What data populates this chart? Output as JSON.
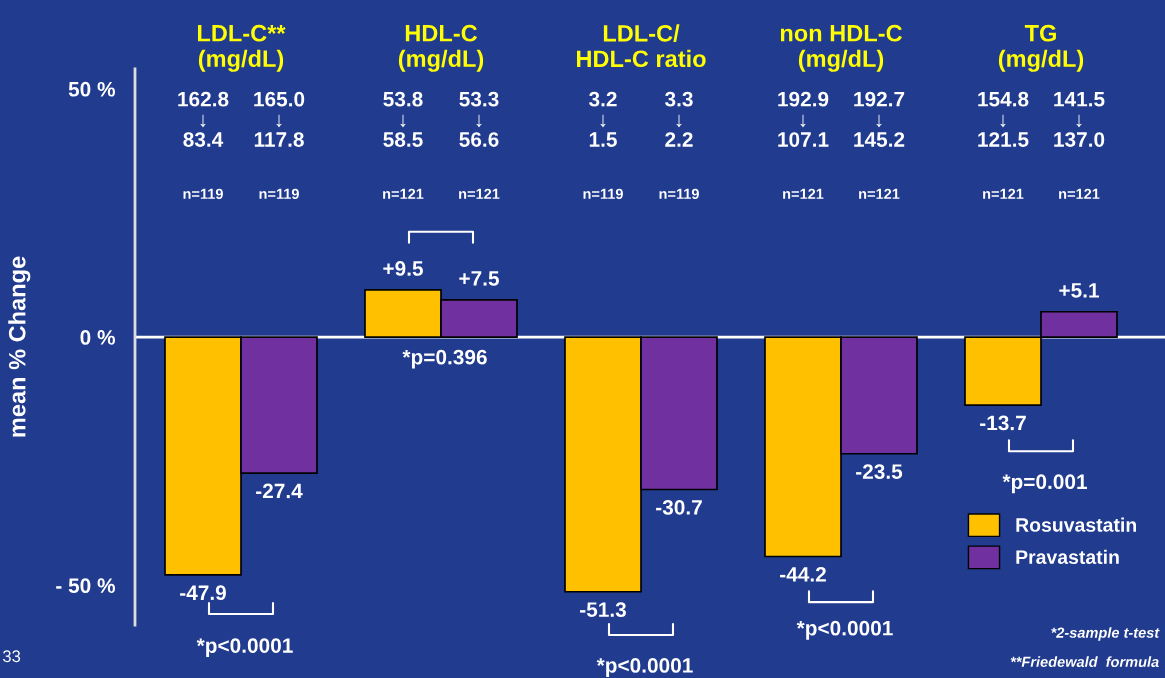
{
  "chart_data": {
    "type": "bar",
    "categories": [
      "LDL-C**\n(mg/dL)",
      "HDL-C\n(mg/dL)",
      "LDL-C/\nHDL-C ratio",
      "non HDL-C\n(mg/dL)",
      "TG\n(mg/dL)"
    ],
    "series": [
      {
        "name": "Rosuvastatin",
        "color": "#ffc000",
        "values": [
          -47.9,
          9.5,
          -51.3,
          -44.2,
          -13.7
        ],
        "value_labels": [
          "-47.9",
          "+9.5",
          "-51.3",
          "-44.2",
          "-13.7"
        ]
      },
      {
        "name": "Pravastatin",
        "color": "#7030a0",
        "values": [
          -27.4,
          7.5,
          -30.7,
          -23.5,
          5.1
        ],
        "value_labels": [
          "-27.4",
          "+7.5",
          "-30.7",
          "-23.5",
          "+5.1"
        ]
      }
    ],
    "ylabel": "mean % Change",
    "ylim": [
      -58,
      54
    ],
    "yticks": [
      {
        "value": 50,
        "label": "50 %"
      },
      {
        "value": 0,
        "label": "0 %"
      },
      {
        "value": -50,
        "label": "- 50 %"
      }
    ],
    "ref_lines": [
      {
        "axis": "y",
        "value": 0,
        "color": "#ffffff"
      }
    ],
    "legend": "lower right",
    "grid": false,
    "annotations": [
      "162.8\n↓\n83.4",
      "165.0\n↓\n117.8",
      "53.8\n↓\n58.5",
      "53.3\n↓\n56.6",
      "3.2\n↓\n1.5",
      "3.3\n↓\n2.2",
      "192.9\n↓\n107.1",
      "192.7\n↓\n145.2",
      "154.8\n↓\n121.5",
      "141.5\n↓\n137.0",
      "n=119",
      "n=119",
      "n=121",
      "n=121",
      "n=119",
      "n=119",
      "n=121",
      "n=121",
      "n=121",
      "n=121",
      "*p<0.0001",
      "*p=0.396",
      "*p<0.0001",
      "*p<0.0001",
      "*p=0.001",
      "*2-sample t-test",
      "**Friedewald  formula",
      "33"
    ]
  }
}
